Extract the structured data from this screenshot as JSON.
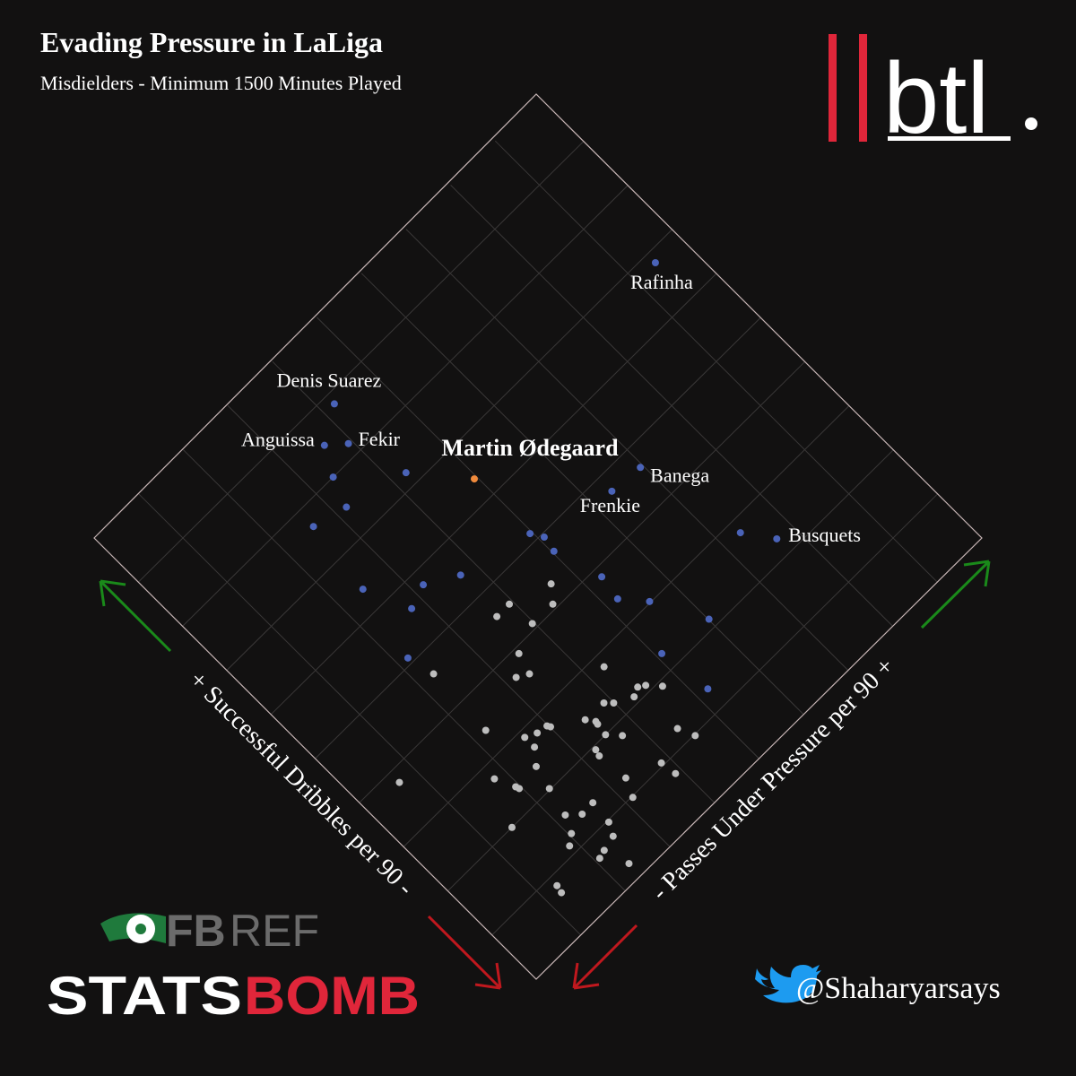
{
  "chart_data": {
    "type": "scatter",
    "title": "Evading Pressure in LaLiga",
    "subtitle": "Misdielders - Minimum 1500 Minutes Played",
    "x_label": "- Passes Under Pressure per 90 +",
    "y_label": "+ Successful Dribbles per 90 -",
    "xlim": [
      0,
      10
    ],
    "ylim": [
      0,
      10
    ],
    "grid": true,
    "series": [
      {
        "color": "#bdbdbd",
        "x": [
          4.63,
          4.42,
          3.93,
          3.65,
          3.97,
          3.48,
          3.37,
          3.18,
          2.29,
          4.29,
          4.44,
          4.73,
          4.55,
          4.29,
          3.88,
          3.99,
          3.48,
          3.58,
          3.57,
          2.98,
          3.01,
          2.24,
          2.79,
          2.6,
          2.6,
          3.54,
          3.72,
          4.42,
          4.54,
          3.26,
          3.23,
          2.4,
          3.85,
          3.89,
          3.28,
          1.79,
          0.68,
          1.94,
          1.96,
          2.3,
          3.14,
          2.63,
          2.38,
          2.18,
          2.59,
          1.44,
          2.04,
          2.48,
          1.88,
          2.22,
          2.08,
          2.35,
          1.29,
          1.26
        ],
        "values": [
          4.33,
          4.08,
          4.57,
          4.57,
          4.09,
          3.9,
          3.55,
          3.66,
          4.63,
          2.79,
          2.18,
          1.91,
          2.11,
          2.11,
          2.38,
          2.27,
          2.4,
          2.26,
          2.21,
          2.76,
          2.71,
          3.4,
          2.79,
          2.88,
          2.66,
          2.0,
          1.8,
          1.26,
          0.98,
          1.94,
          1.83,
          2.42,
          1.05,
          0.77,
          1.28,
          2.75,
          3.78,
          2.42,
          2.36,
          2.02,
          0.98,
          1.37,
          1.36,
          1.54,
          0.97,
          2.0,
          1.26,
          0.76,
          1.14,
          0.7,
          0.66,
          0.27,
          0.83,
          0.7
        ]
      },
      {
        "color": "#4a63b8",
        "x": [
          9.43,
          4.22,
          3.64,
          3.93,
          6.95,
          6.36,
          7.68,
          4.25,
          3.38,
          3.19,
          2.6,
          4.96,
          5.08,
          5.03,
          7.34,
          3.71,
          3.18,
          2.45,
          2.78,
          5.28,
          5.21,
          5.54,
          6.01,
          2.18,
          5.09,
          5.21
        ],
        "values": [
          6.81,
          8.82,
          8.46,
          8.21,
          4.65,
          4.7,
          2.3,
          7.23,
          8.0,
          7.51,
          7.66,
          5.14,
          4.94,
          4.67,
          2.78,
          5.45,
          5.76,
          6.39,
          5.62,
          3.84,
          3.41,
          3.02,
          2.15,
          5.1,
          2.29,
          1.37
        ],
        "labels": [
          "Rafinha",
          "Denis Suarez",
          "Anguissa",
          "Fekir",
          "Banega",
          "Frenkie",
          "Busquets",
          null,
          null,
          null,
          null,
          null,
          null,
          null,
          null,
          null,
          null,
          null,
          null,
          null,
          null,
          null,
          null,
          null,
          null,
          null
        ]
      },
      {
        "color": "#f08a3c",
        "x": [
          4.95
        ],
        "values": [
          6.39
        ],
        "labels": [
          "Martin Ødegaard"
        ]
      }
    ]
  },
  "branding": {
    "site": "btl",
    "fbref_a": "FB",
    "fbref_b": "REF",
    "statsbomb_a": "STATS",
    "statsbomb_b": "BOMB",
    "handle": "@Shaharyarsays"
  }
}
